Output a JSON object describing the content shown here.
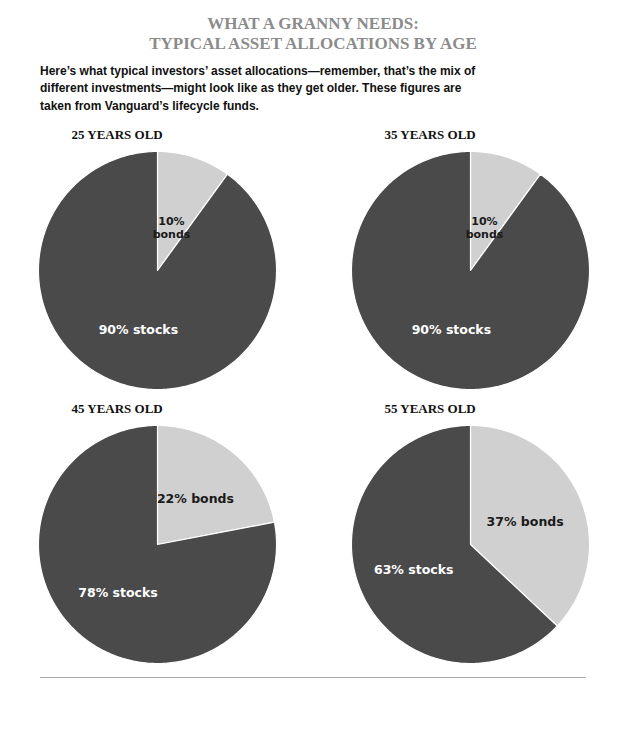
{
  "title": "WHAT A GRANNY NEEDS:\nTYPICAL ASSET ALLOCATIONS BY AGE",
  "title_color": "#8B8B8B",
  "subtitle": "Here’s what typical investors’ asset allocations—remember, that’s the mix of\ndifferent investments—might look like as they get older. These figures are\ntaken from Vanguard’s lifecycle funds.",
  "chart_data": [
    {
      "type": "pie",
      "title": "25 YEARS OLD",
      "values": [
        10,
        90
      ],
      "value_labels": [
        "10%\nbonds",
        "90% stocks"
      ],
      "colors": [
        "#d0d0d0",
        "#4a4a4a"
      ],
      "data_labels": true
    },
    {
      "type": "pie",
      "title": "35 YEARS OLD",
      "values": [
        10,
        90
      ],
      "value_labels": [
        "10%\nbonds",
        "90% stocks"
      ],
      "colors": [
        "#d0d0d0",
        "#4a4a4a"
      ],
      "data_labels": true
    },
    {
      "type": "pie",
      "title": "45 YEARS OLD",
      "values": [
        22,
        78
      ],
      "value_labels": [
        "22% bonds",
        "78% stocks"
      ],
      "colors": [
        "#d0d0d0",
        "#4a4a4a"
      ],
      "data_labels": true
    },
    {
      "type": "pie",
      "title": "55 YEARS OLD",
      "values": [
        37,
        63
      ],
      "value_labels": [
        "37% bonds",
        "63% stocks"
      ],
      "colors": [
        "#d0d0d0",
        "#4a4a4a"
      ],
      "data_labels": true
    }
  ]
}
